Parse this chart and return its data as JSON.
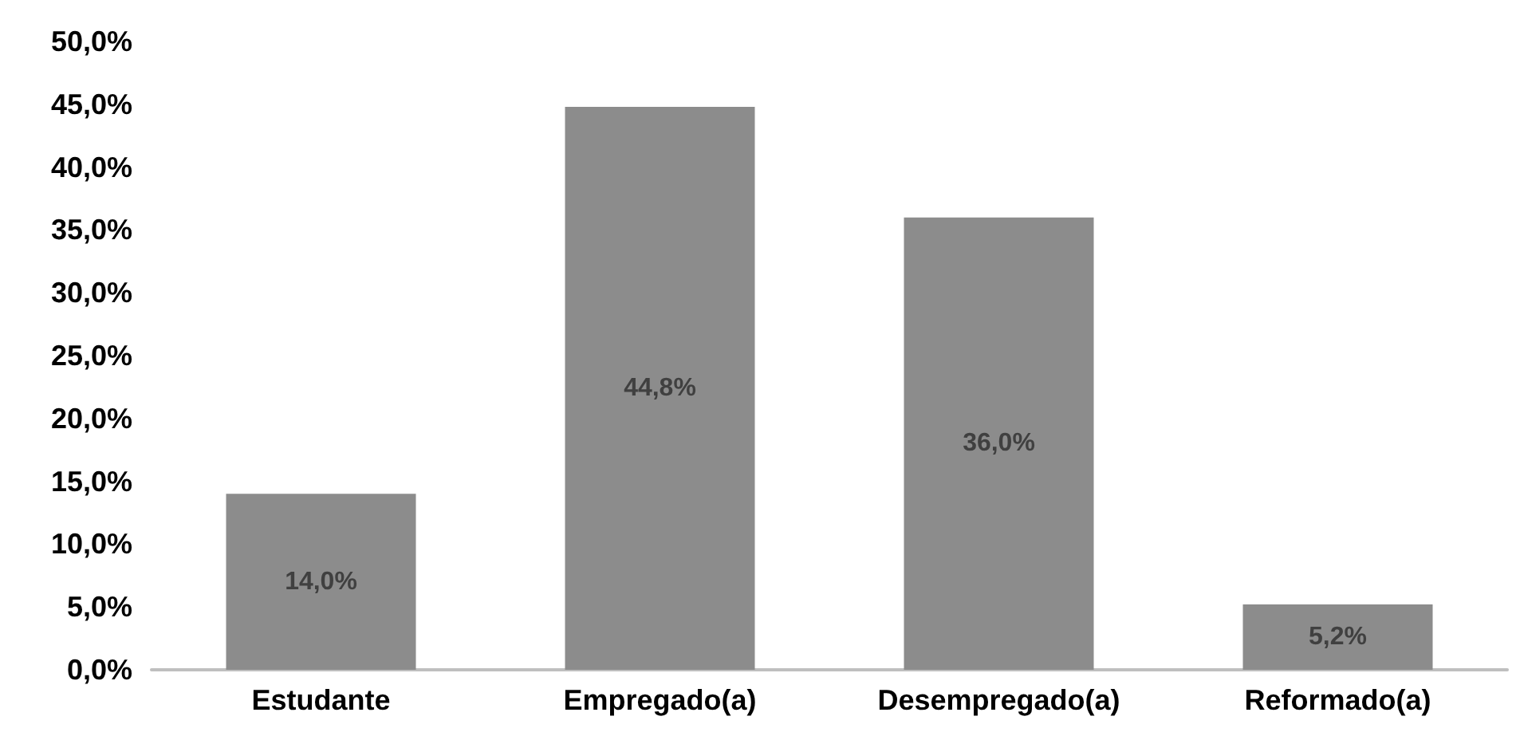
{
  "chart_data": {
    "type": "bar",
    "categories": [
      "Estudante",
      "Empregado(a)",
      "Desempregado(a)",
      "Reformado(a)"
    ],
    "values": [
      14.0,
      44.8,
      36.0,
      5.2
    ],
    "value_labels": [
      "14,0%",
      "44,8%",
      "36,0%",
      "5,2%"
    ],
    "color": "#8c8c8c",
    "ylim": [
      0,
      50
    ],
    "yticks": [
      {
        "value": 0,
        "label": "0,0%"
      },
      {
        "value": 5,
        "label": "5,0%"
      },
      {
        "value": 10,
        "label": "10,0%"
      },
      {
        "value": 15,
        "label": "15,0%"
      },
      {
        "value": 20,
        "label": "20,0%"
      },
      {
        "value": 25,
        "label": "25,0%"
      },
      {
        "value": 30,
        "label": "30,0%"
      },
      {
        "value": 35,
        "label": "35,0%"
      },
      {
        "value": 40,
        "label": "40,0%"
      },
      {
        "value": 45,
        "label": "45,0%"
      },
      {
        "value": 50,
        "label": "50,0%"
      }
    ],
    "grid": false
  }
}
